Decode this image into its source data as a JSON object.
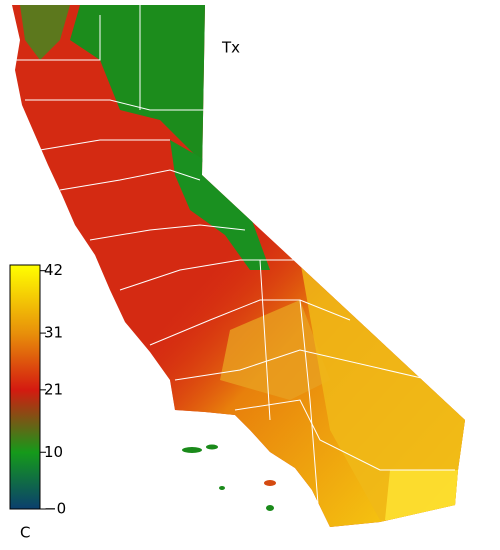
{
  "map": {
    "title": "Tx",
    "colorbar": {
      "unit": "C",
      "lim": [
        0,
        43
      ],
      "ticks": [
        {
          "value": 0,
          "label": "−0"
        },
        10,
        21,
        31,
        42
      ],
      "colors": [
        {
          "value": 0,
          "color": "#0b3f6e"
        },
        {
          "value": 10,
          "color": "#159a1a"
        },
        {
          "value": 21,
          "color": "#d41a10"
        },
        {
          "value": 31,
          "color": "#e8900a"
        },
        {
          "value": 43,
          "color": "#ffff00"
        }
      ]
    }
  }
}
